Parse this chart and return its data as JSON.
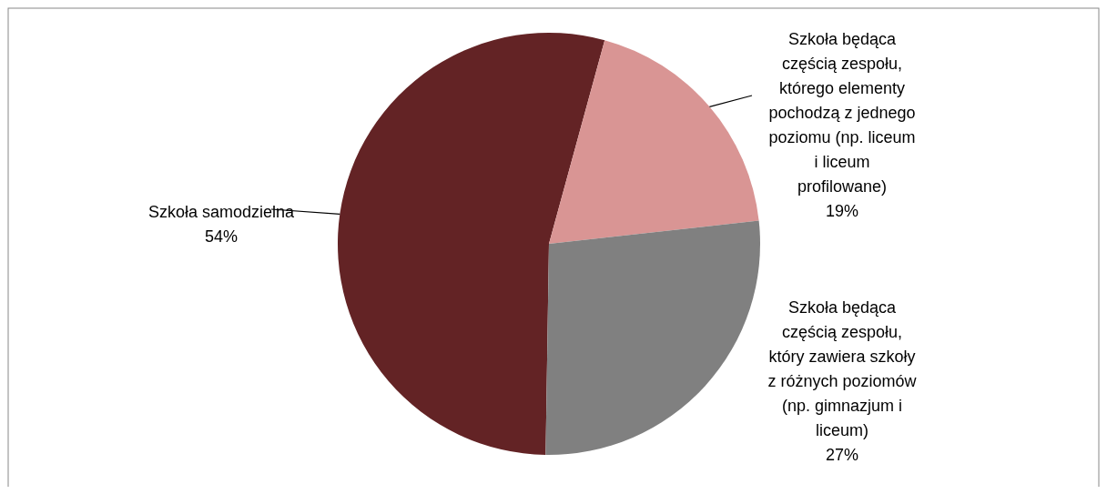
{
  "chart_data": {
    "type": "pie",
    "categories": [
      "Szkoła samodzielna",
      "Szkoła będąca częścią zespołu, którego elementy pochodzą z jednego poziomu (np. liceum i liceum profilowane)",
      "Szkoła będąca częścią zespołu, który zawiera szkoły z różnych poziomów (np. gimnazjum i liceum)"
    ],
    "values": [
      54,
      19,
      27
    ],
    "value_labels": [
      "54%",
      "19%",
      "27%"
    ],
    "colors": [
      "#632325",
      "#d99594",
      "#808080"
    ]
  }
}
